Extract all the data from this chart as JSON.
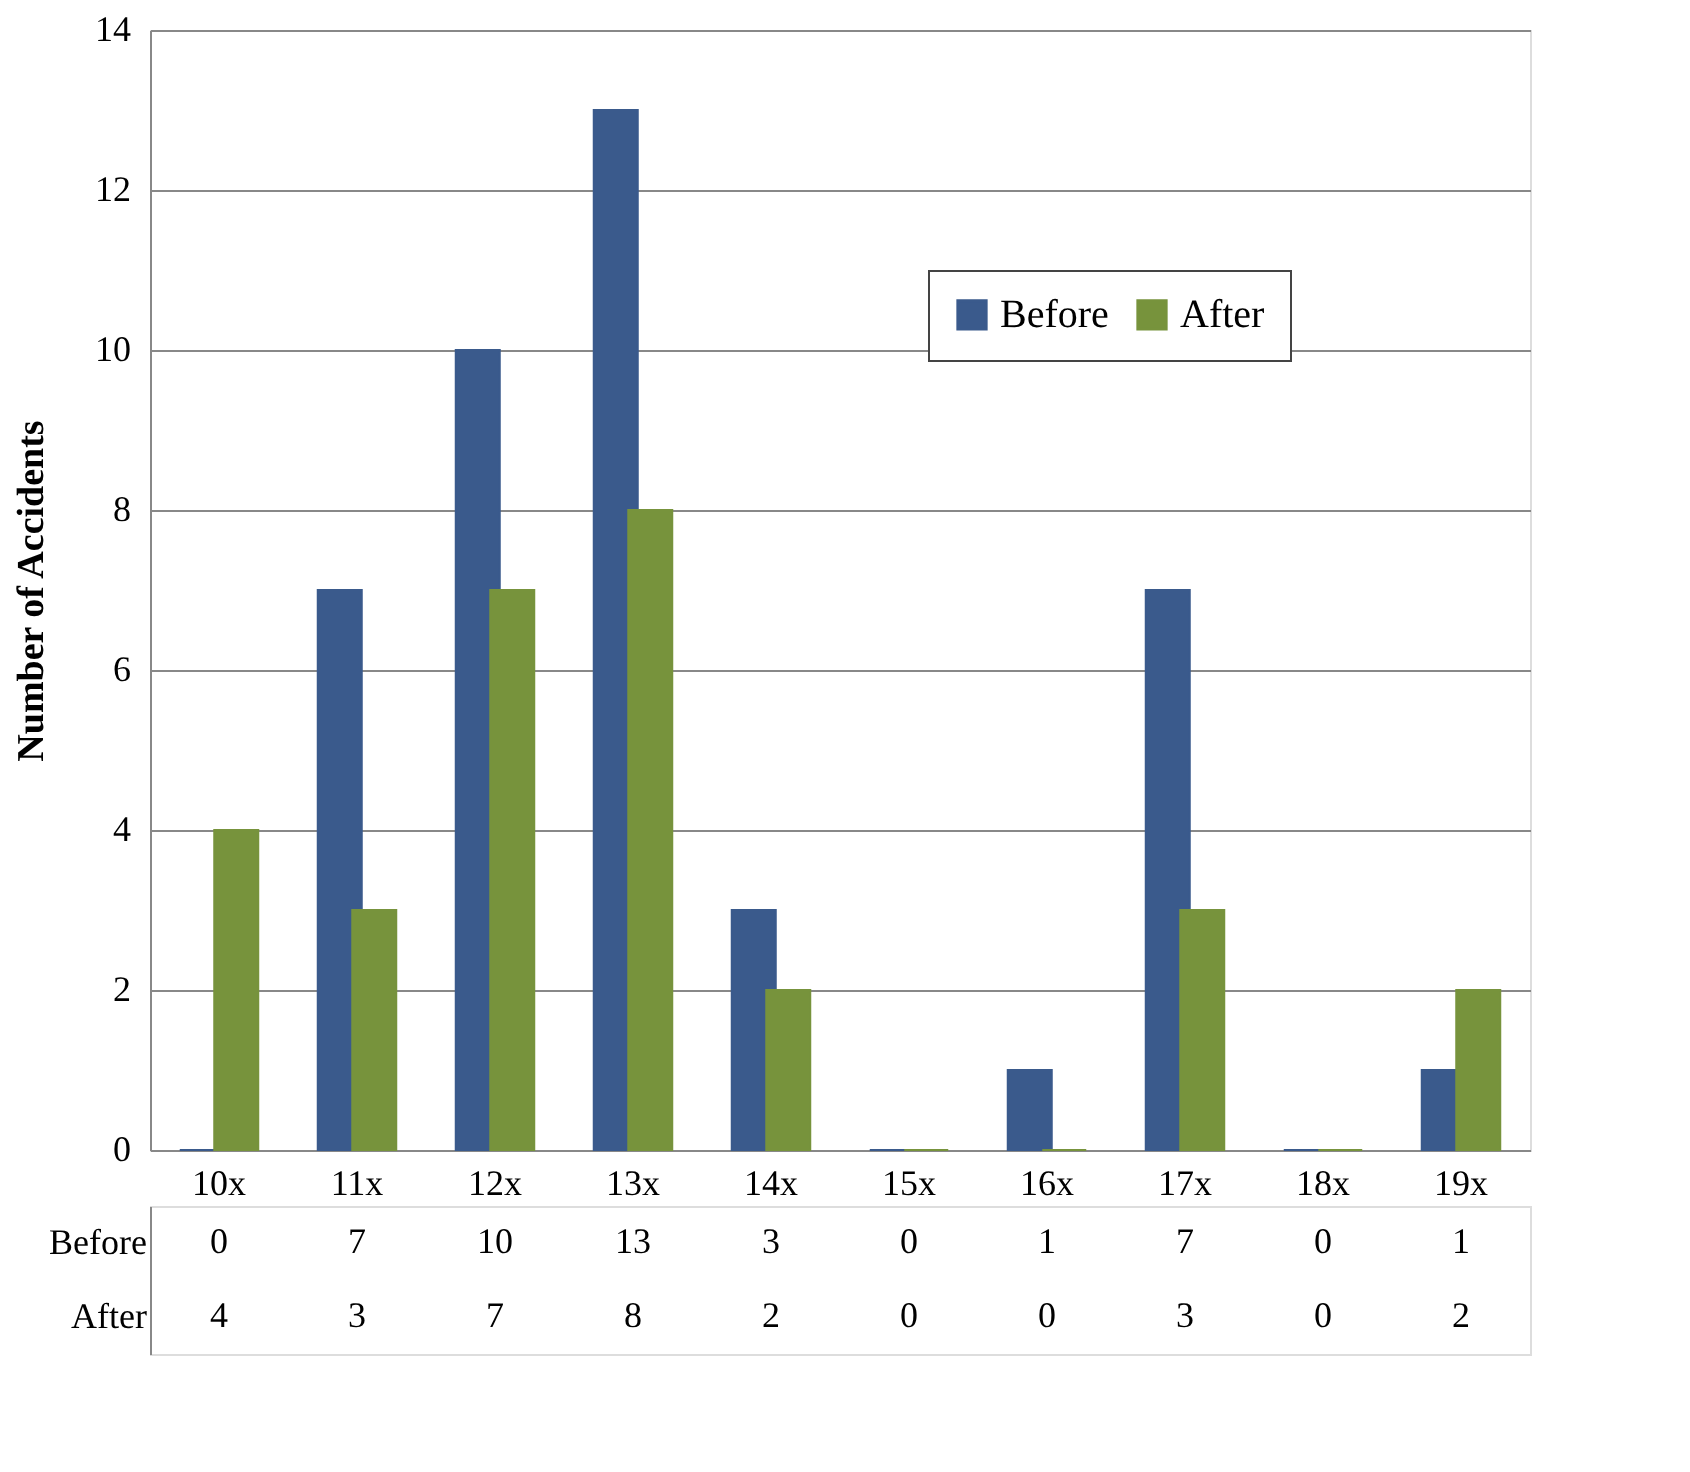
{
  "chart_data": {
    "type": "bar",
    "ylabel": "Number of Accidents",
    "categories": [
      "10x",
      "11x",
      "12x",
      "13x",
      "14x",
      "15x",
      "16x",
      "17x",
      "18x",
      "19x"
    ],
    "series": [
      {
        "name": "Before",
        "color": "#3a5a8c",
        "values": [
          0,
          7,
          10,
          13,
          3,
          0,
          1,
          7,
          0,
          1
        ]
      },
      {
        "name": "After",
        "color": "#77933c",
        "values": [
          4,
          3,
          7,
          8,
          2,
          0,
          0,
          3,
          0,
          2
        ]
      }
    ],
    "ylim": [
      0,
      14
    ],
    "yticks": [
      0,
      2,
      4,
      6,
      8,
      10,
      12,
      14
    ],
    "grid": "y",
    "legend": "top right",
    "data_labels": true
  }
}
